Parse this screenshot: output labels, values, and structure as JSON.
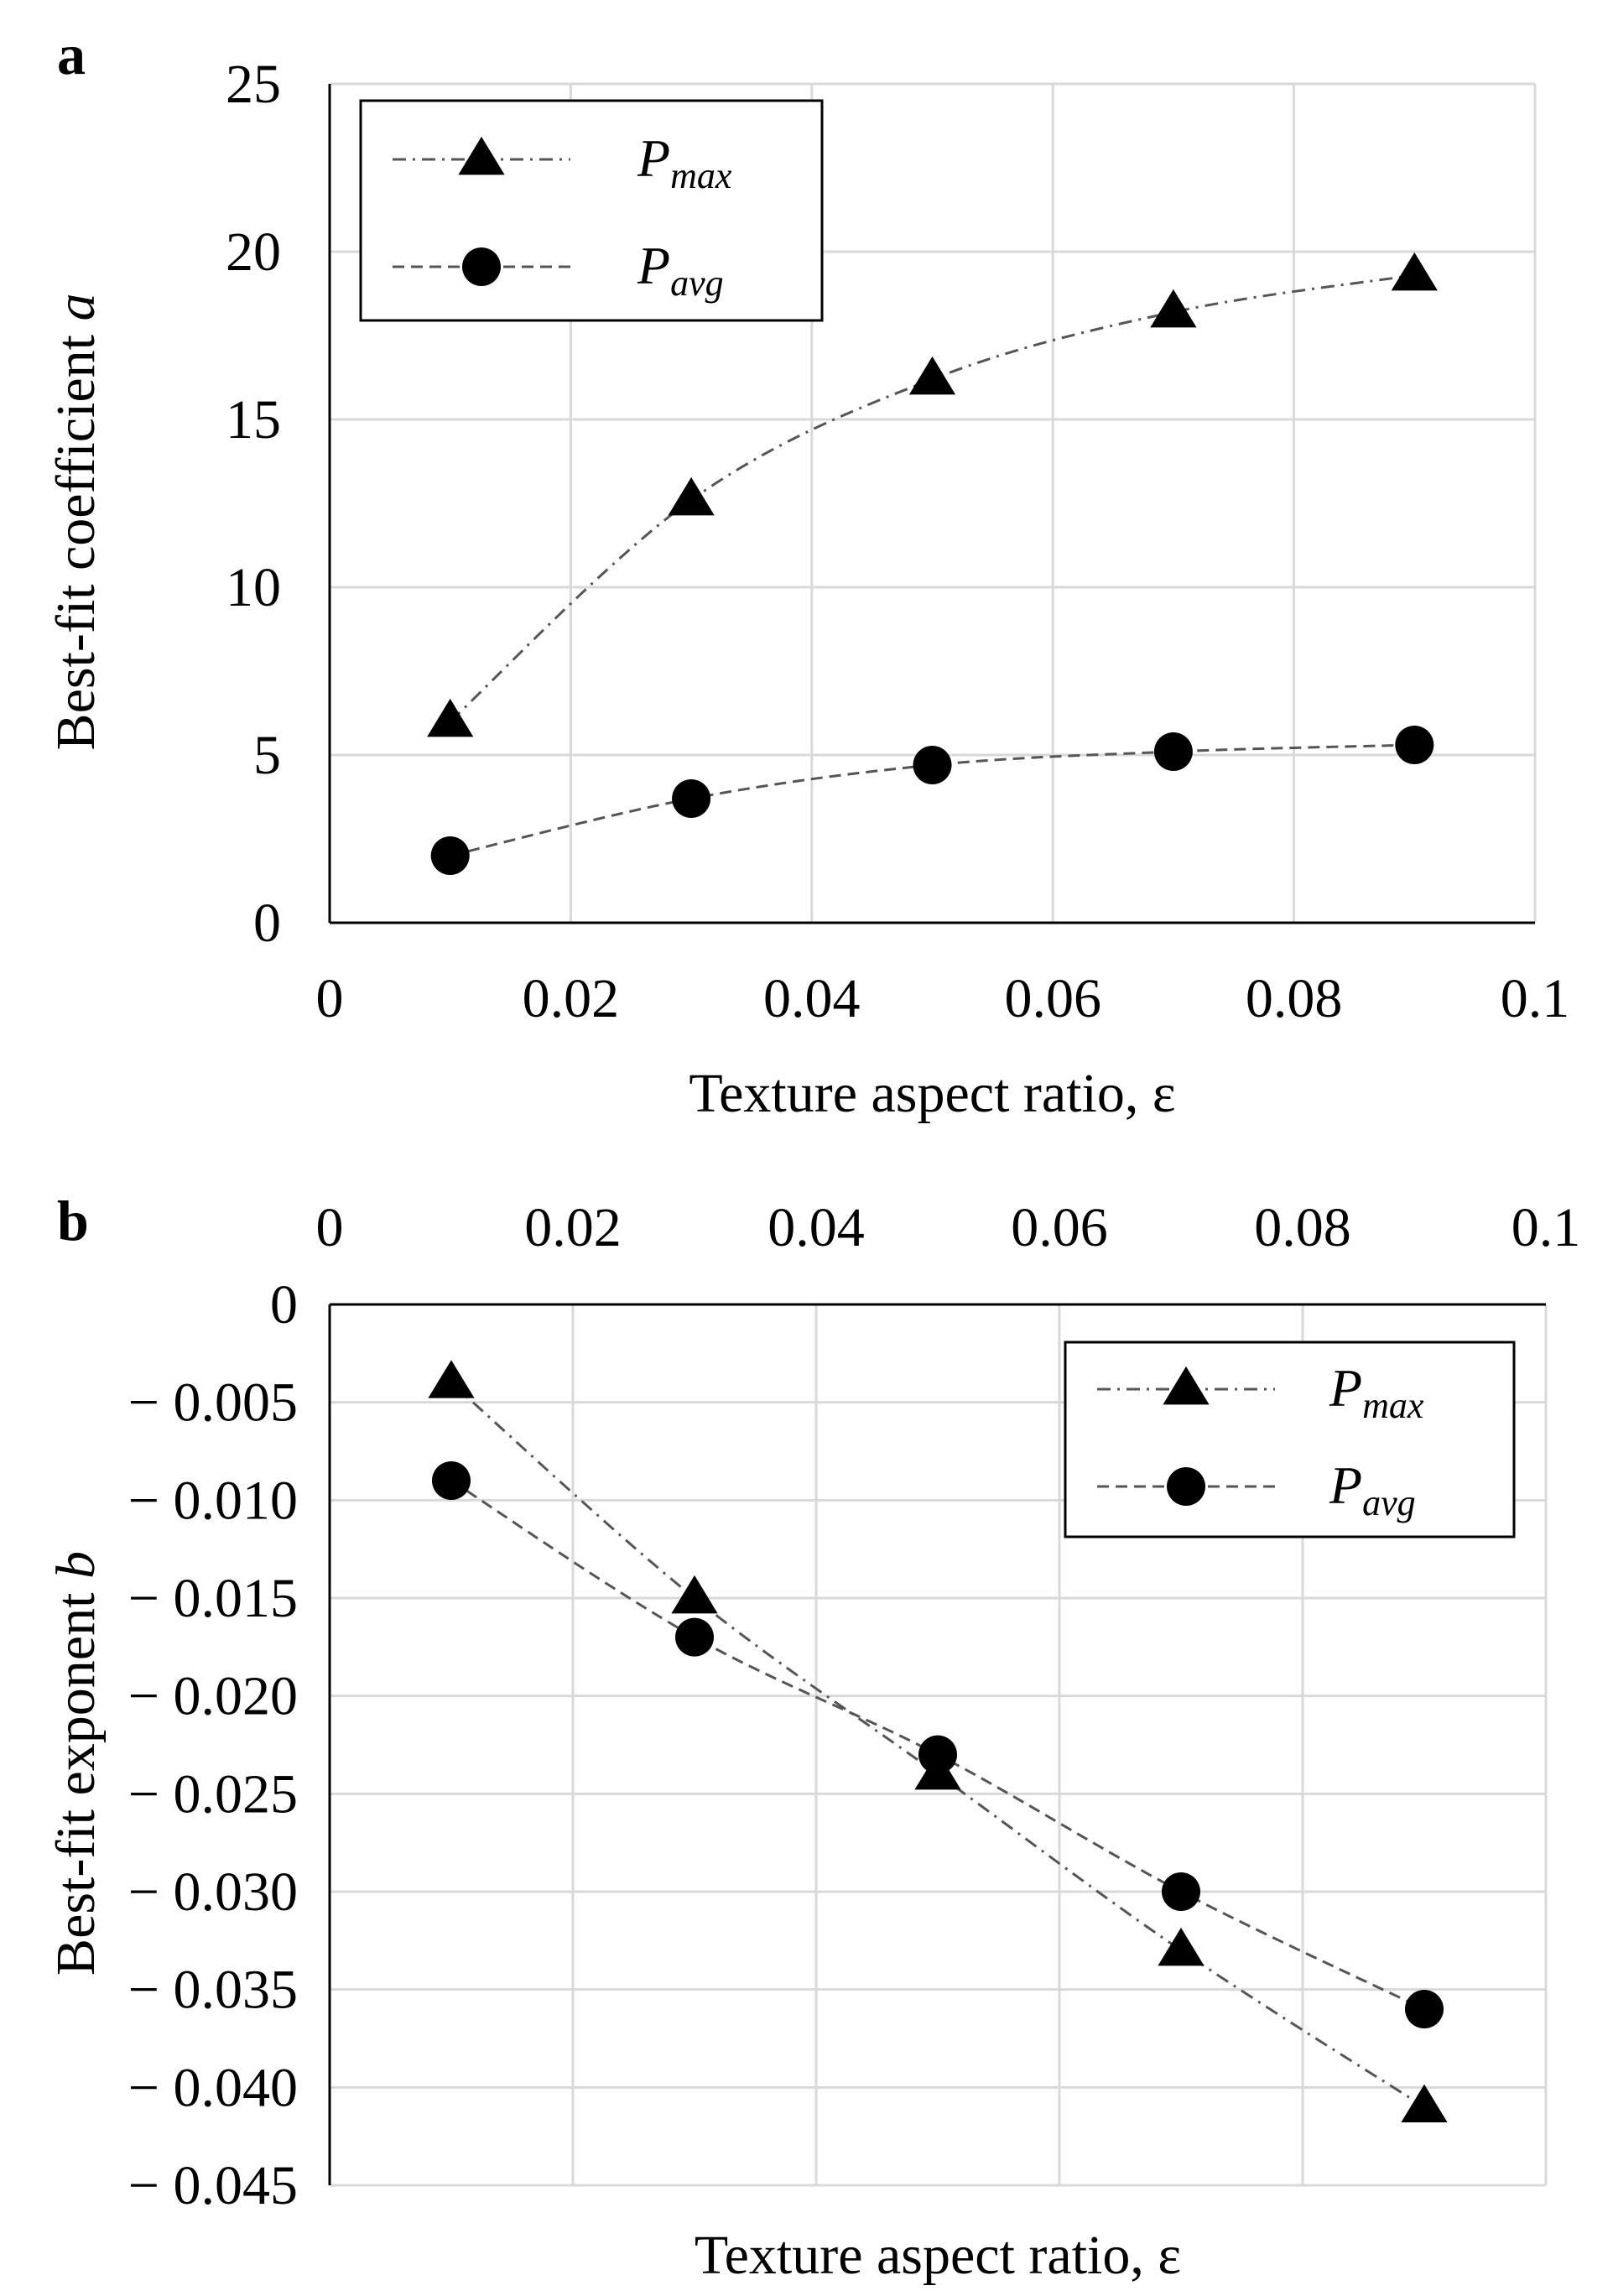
{
  "chart_data": [
    {
      "panel": "a",
      "type": "line",
      "xlabel": "Texture aspect ratio, ε",
      "ylabel_text": "Best-fit coefficient ",
      "ylabel_italic": "a",
      "xlim": [
        0,
        0.1
      ],
      "ylim": [
        0,
        25
      ],
      "x_ticks": [
        0,
        0.02,
        0.04,
        0.06,
        0.08,
        0.1
      ],
      "x_tick_labels": [
        "0",
        "0.02",
        "0.04",
        "0.06",
        "0.08",
        "0.1"
      ],
      "y_ticks": [
        0,
        5,
        10,
        15,
        20,
        25
      ],
      "y_tick_labels": [
        "0",
        "5",
        "10",
        "15",
        "20",
        "25"
      ],
      "x_axis_position": "bottom",
      "grid": true,
      "legend_position": "top-left",
      "series": [
        {
          "name": "P",
          "subscript": "max",
          "marker": "triangle",
          "line": "dash-dot",
          "x": [
            0.01,
            0.03,
            0.05,
            0.07,
            0.09
          ],
          "y": [
            6.0,
            12.6,
            16.2,
            18.2,
            19.3
          ]
        },
        {
          "name": "P",
          "subscript": "avg",
          "marker": "circle",
          "line": "dashed",
          "x": [
            0.01,
            0.03,
            0.05,
            0.07,
            0.09
          ],
          "y": [
            2.0,
            3.7,
            4.7,
            5.1,
            5.3
          ]
        }
      ]
    },
    {
      "panel": "b",
      "type": "line",
      "xlabel": "Texture aspect ratio, ε",
      "ylabel_text": "Best-fit exponent ",
      "ylabel_italic": "b",
      "xlim": [
        0,
        0.1
      ],
      "ylim": [
        -0.045,
        0
      ],
      "x_ticks": [
        0,
        0.02,
        0.04,
        0.06,
        0.08,
        0.1
      ],
      "x_tick_labels": [
        "0",
        "0.02",
        "0.04",
        "0.06",
        "0.08",
        "0.1"
      ],
      "y_ticks": [
        0,
        -0.005,
        -0.01,
        -0.015,
        -0.02,
        -0.025,
        -0.03,
        -0.035,
        -0.04,
        -0.045
      ],
      "y_tick_labels": [
        "0",
        "− 0.005",
        "− 0.010",
        "− 0.015",
        "− 0.020",
        "− 0.025",
        "− 0.030",
        "− 0.035",
        "− 0.040",
        "− 0.045"
      ],
      "x_axis_position": "top",
      "grid": true,
      "legend_position": "top-right",
      "series": [
        {
          "name": "P",
          "subscript": "max",
          "marker": "triangle",
          "line": "dash-dot",
          "x": [
            0.01,
            0.03,
            0.05,
            0.07,
            0.09
          ],
          "y": [
            -0.004,
            -0.015,
            -0.024,
            -0.033,
            -0.041
          ]
        },
        {
          "name": "P",
          "subscript": "avg",
          "marker": "circle",
          "line": "dashed",
          "x": [
            0.01,
            0.03,
            0.05,
            0.07,
            0.09
          ],
          "y": [
            -0.009,
            -0.017,
            -0.023,
            -0.03,
            -0.036
          ]
        }
      ]
    }
  ]
}
